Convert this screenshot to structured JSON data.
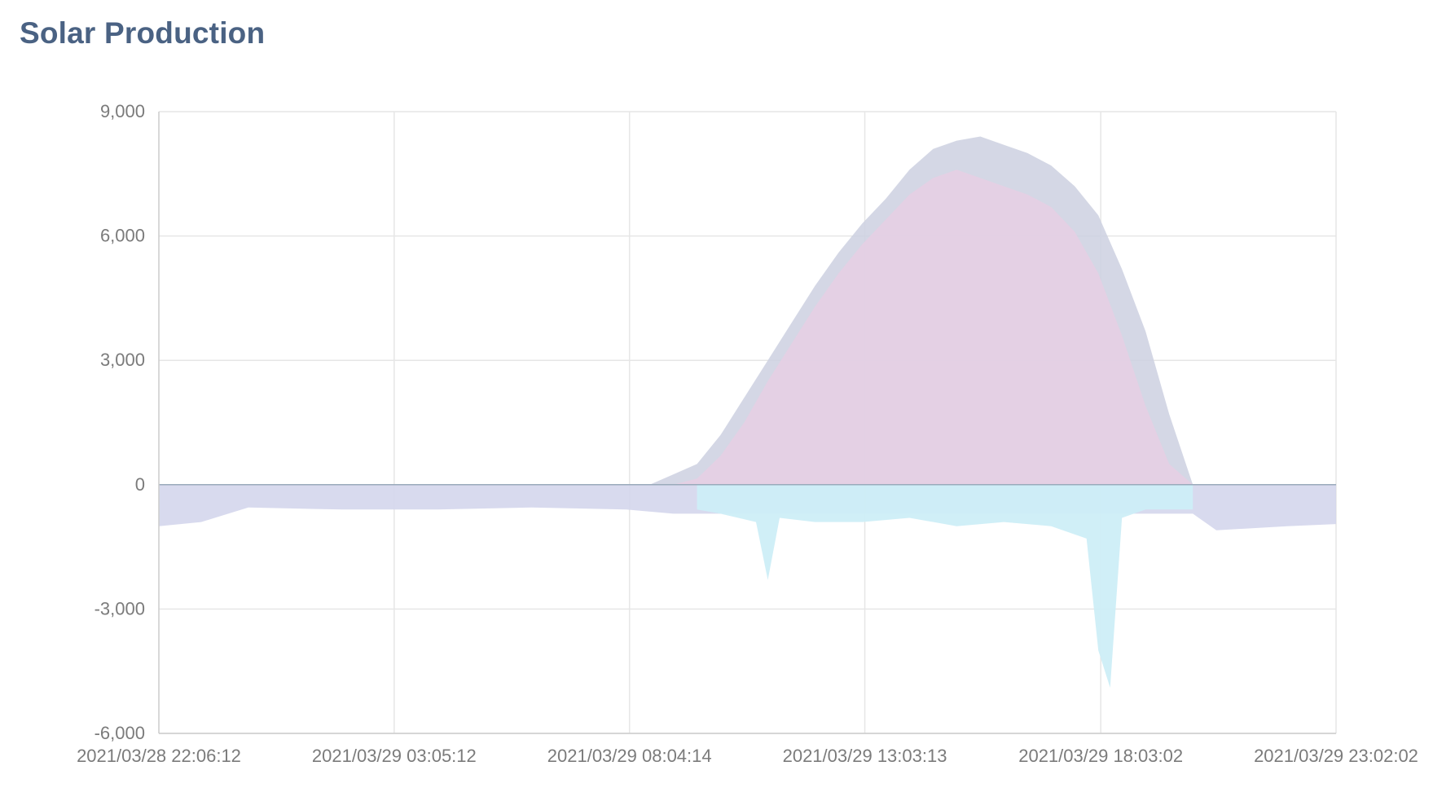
{
  "page": {
    "title": "Solar Production"
  },
  "chart_data": {
    "type": "area",
    "title": "Solar Production",
    "xlabel": "",
    "ylabel": "",
    "ylim": [
      -6000,
      9000
    ],
    "yticks": [
      9000,
      6000,
      3000,
      0,
      -3000,
      -6000
    ],
    "ytick_labels": [
      "9,000",
      "6,000",
      "3,000",
      "0",
      "-3,000",
      "-6,000"
    ],
    "x_range": [
      "2021/03/28 22:06:12",
      "2021/03/29 23:02:02"
    ],
    "xtick_labels": [
      "2021/03/28 22:06:12",
      "2021/03/29 03:05:12",
      "2021/03/29 08:04:14",
      "2021/03/29 13:03:13",
      "2021/03/29 18:03:02",
      "2021/03/29 23:02:02"
    ],
    "grid": true,
    "colors": {
      "production": "#cdd0e0",
      "consumption": "#e6cfe4",
      "negative_base": "#d4d6ec",
      "export": "#cdeef7",
      "axis": "#cccccc",
      "grid": "#e6e6e6",
      "zero_line": "#9aaabb"
    },
    "series": [
      {
        "key": "production",
        "x": [
          "2021/03/28 22:06:12",
          "2021/03/29 08:30:00",
          "2021/03/29 09:00:00",
          "2021/03/29 09:30:00",
          "2021/03/29 10:00:00",
          "2021/03/29 10:30:00",
          "2021/03/29 11:00:00",
          "2021/03/29 11:30:00",
          "2021/03/29 12:00:00",
          "2021/03/29 12:30:00",
          "2021/03/29 13:00:00",
          "2021/03/29 13:30:00",
          "2021/03/29 14:00:00",
          "2021/03/29 14:30:00",
          "2021/03/29 15:00:00",
          "2021/03/29 15:30:00",
          "2021/03/29 16:00:00",
          "2021/03/29 16:30:00",
          "2021/03/29 17:00:00",
          "2021/03/29 17:30:00",
          "2021/03/29 18:00:00",
          "2021/03/29 18:30:00",
          "2021/03/29 19:00:00",
          "2021/03/29 19:30:00",
          "2021/03/29 20:00:00",
          "2021/03/29 23:02:02"
        ],
        "y": [
          0,
          0,
          250,
          500,
          1200,
          2100,
          3000,
          3900,
          4800,
          5600,
          6300,
          6900,
          7600,
          8100,
          8300,
          8400,
          8200,
          8000,
          7700,
          7200,
          6500,
          5200,
          3700,
          1700,
          0,
          0
        ]
      },
      {
        "key": "consumption",
        "x": [
          "2021/03/28 22:06:12",
          "2021/03/29 09:00:00",
          "2021/03/29 09:30:00",
          "2021/03/29 10:00:00",
          "2021/03/29 10:30:00",
          "2021/03/29 11:00:00",
          "2021/03/29 11:30:00",
          "2021/03/29 12:00:00",
          "2021/03/29 12:30:00",
          "2021/03/29 13:00:00",
          "2021/03/29 13:30:00",
          "2021/03/29 14:00:00",
          "2021/03/29 14:30:00",
          "2021/03/29 15:00:00",
          "2021/03/29 15:30:00",
          "2021/03/29 16:00:00",
          "2021/03/29 16:30:00",
          "2021/03/29 17:00:00",
          "2021/03/29 17:30:00",
          "2021/03/29 18:00:00",
          "2021/03/29 18:30:00",
          "2021/03/29 19:00:00",
          "2021/03/29 19:30:00",
          "2021/03/29 20:00:00",
          "2021/03/29 23:02:02"
        ],
        "y": [
          0,
          0,
          150,
          700,
          1500,
          2500,
          3400,
          4300,
          5100,
          5800,
          6400,
          7000,
          7400,
          7600,
          7400,
          7200,
          7000,
          6700,
          6100,
          5100,
          3600,
          1900,
          500,
          0,
          0
        ]
      },
      {
        "key": "negative_base",
        "x": [
          "2021/03/28 22:06:12",
          "2021/03/28 23:00:00",
          "2021/03/29 00:00:00",
          "2021/03/29 02:00:00",
          "2021/03/29 04:00:00",
          "2021/03/29 06:00:00",
          "2021/03/29 08:00:00",
          "2021/03/29 09:00:00",
          "2021/03/29 09:30:00",
          "2021/03/29 20:00:00",
          "2021/03/29 20:30:00",
          "2021/03/29 22:00:00",
          "2021/03/29 23:02:02"
        ],
        "y": [
          -1000,
          -900,
          -550,
          -600,
          -600,
          -550,
          -600,
          -700,
          -700,
          -700,
          -1100,
          -1000,
          -950
        ]
      },
      {
        "key": "export",
        "x": [
          "2021/03/29 09:30:00",
          "2021/03/29 10:00:00",
          "2021/03/29 10:45:00",
          "2021/03/29 11:00:00",
          "2021/03/29 11:15:00",
          "2021/03/29 12:00:00",
          "2021/03/29 13:00:00",
          "2021/03/29 14:00:00",
          "2021/03/29 15:00:00",
          "2021/03/29 16:00:00",
          "2021/03/29 17:00:00",
          "2021/03/29 17:45:00",
          "2021/03/29 18:00:00",
          "2021/03/29 18:15:00",
          "2021/03/29 18:30:00",
          "2021/03/29 18:45:00",
          "2021/03/29 19:00:00",
          "2021/03/29 20:00:00"
        ],
        "y": [
          -600,
          -700,
          -900,
          -2300,
          -800,
          -900,
          -900,
          -800,
          -1000,
          -900,
          -1000,
          -1300,
          -4000,
          -4900,
          -800,
          -700,
          -600,
          -600
        ]
      }
    ]
  }
}
